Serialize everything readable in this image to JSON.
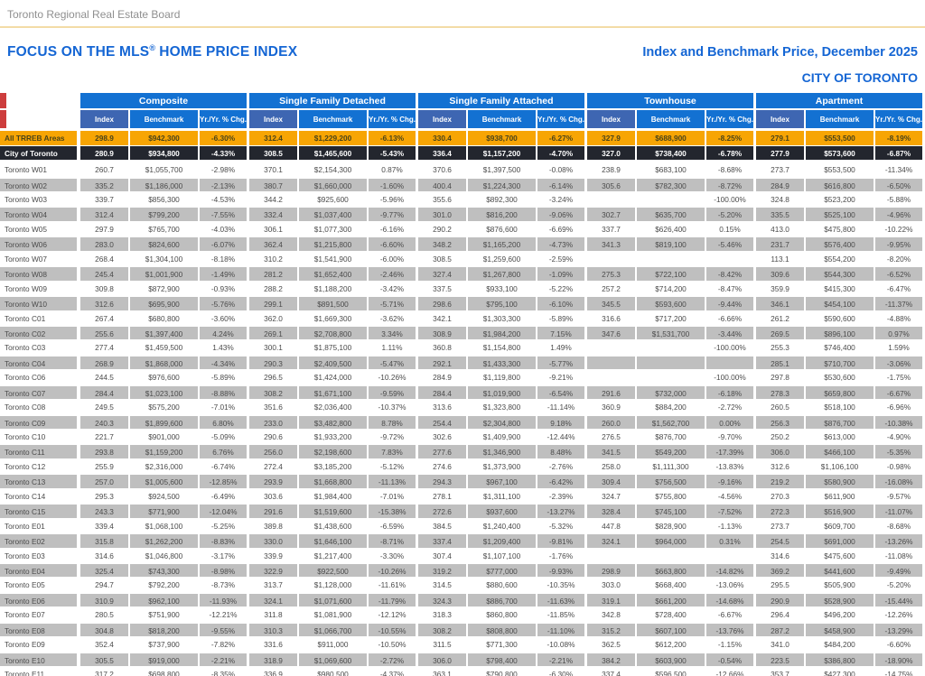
{
  "board": "Toronto Regional Real Estate Board",
  "titles": {
    "report_pre": "FOCUS ON THE MLS",
    "report_sup": "®",
    "report_post": "HOME PRICE INDEX",
    "date_title": "Index and Benchmark Price, December 2025",
    "region": "CITY OF TORONTO"
  },
  "colors": {
    "title_blue": "#1566d4",
    "group_header_blue": "#1371d2",
    "index_header_blue": "#3e66b2",
    "trreb_row_orange": "#f7a504",
    "city_row_dark": "#23262e",
    "stripe_gray": "#bfbfbf",
    "top_rule_gold": "#f3dca6",
    "corner_red": "#cd3d3d"
  },
  "table": {
    "groups": [
      "Composite",
      "Single Family Detached",
      "Single Family Attached",
      "Townhouse",
      "Apartment"
    ],
    "subheaders": [
      "Index",
      "Benchmark",
      "Yr./Yr. % Chg."
    ],
    "rows": [
      {
        "label": "All TRREB Areas",
        "type": "trreb",
        "cells": [
          "298.9",
          "$942,300",
          "-6.30%",
          "312.4",
          "$1,229,200",
          "-6.13%",
          "330.4",
          "$938,700",
          "-6.27%",
          "327.9",
          "$688,900",
          "-8.25%",
          "279.1",
          "$553,500",
          "-8.19%"
        ]
      },
      {
        "label": "City of Toronto",
        "type": "city",
        "cells": [
          "280.9",
          "$934,800",
          "-4.33%",
          "308.5",
          "$1,465,600",
          "-5.43%",
          "336.4",
          "$1,157,200",
          "-4.70%",
          "327.0",
          "$738,400",
          "-6.78%",
          "277.9",
          "$573,600",
          "-6.87%"
        ]
      },
      {
        "label": "Toronto W01",
        "cells": [
          "260.7",
          "$1,055,700",
          "-2.98%",
          "370.1",
          "$2,154,300",
          "0.87%",
          "370.6",
          "$1,397,500",
          "-0.08%",
          "238.9",
          "$683,100",
          "-8.68%",
          "273.7",
          "$553,500",
          "-11.34%"
        ]
      },
      {
        "label": "Toronto W02",
        "cells": [
          "335.2",
          "$1,186,000",
          "-2.13%",
          "380.7",
          "$1,660,000",
          "-1.60%",
          "400.4",
          "$1,224,300",
          "-6.14%",
          "305.6",
          "$782,300",
          "-8.72%",
          "284.9",
          "$616,800",
          "-6.50%"
        ]
      },
      {
        "label": "Toronto W03",
        "cells": [
          "339.7",
          "$856,300",
          "-4.53%",
          "344.2",
          "$925,600",
          "-5.96%",
          "355.6",
          "$892,300",
          "-3.24%",
          "",
          "",
          "-100.00%",
          "324.8",
          "$523,200",
          "-5.88%"
        ]
      },
      {
        "label": "Toronto W04",
        "cells": [
          "312.4",
          "$799,200",
          "-7.55%",
          "332.4",
          "$1,037,400",
          "-9.77%",
          "301.0",
          "$816,200",
          "-9.06%",
          "302.7",
          "$635,700",
          "-5.20%",
          "335.5",
          "$525,100",
          "-4.96%"
        ]
      },
      {
        "label": "Toronto W05",
        "cells": [
          "297.9",
          "$765,700",
          "-4.03%",
          "306.1",
          "$1,077,300",
          "-6.16%",
          "290.2",
          "$876,600",
          "-6.69%",
          "337.7",
          "$626,400",
          "0.15%",
          "413.0",
          "$475,800",
          "-10.22%"
        ]
      },
      {
        "label": "Toronto W06",
        "cells": [
          "283.0",
          "$824,600",
          "-6.07%",
          "362.4",
          "$1,215,800",
          "-6.60%",
          "348.2",
          "$1,165,200",
          "-4.73%",
          "341.3",
          "$819,100",
          "-5.46%",
          "231.7",
          "$576,400",
          "-9.95%"
        ]
      },
      {
        "label": "Toronto W07",
        "cells": [
          "268.4",
          "$1,304,100",
          "-8.18%",
          "310.2",
          "$1,541,900",
          "-6.00%",
          "308.5",
          "$1,259,600",
          "-2.59%",
          "",
          "",
          "",
          "113.1",
          "$554,200",
          "-8.20%"
        ]
      },
      {
        "label": "Toronto W08",
        "cells": [
          "245.4",
          "$1,001,900",
          "-1.49%",
          "281.2",
          "$1,652,400",
          "-2.46%",
          "327.4",
          "$1,267,800",
          "-1.09%",
          "275.3",
          "$722,100",
          "-8.42%",
          "309.6",
          "$544,300",
          "-6.52%"
        ]
      },
      {
        "label": "Toronto W09",
        "cells": [
          "309.8",
          "$872,900",
          "-0.93%",
          "288.2",
          "$1,188,200",
          "-3.42%",
          "337.5",
          "$933,100",
          "-5.22%",
          "257.2",
          "$714,200",
          "-8.47%",
          "359.9",
          "$415,300",
          "-6.47%"
        ]
      },
      {
        "label": "Toronto W10",
        "cells": [
          "312.6",
          "$695,900",
          "-5.76%",
          "299.1",
          "$891,500",
          "-5.71%",
          "298.6",
          "$795,100",
          "-6.10%",
          "345.5",
          "$593,600",
          "-9.44%",
          "346.1",
          "$454,100",
          "-11.37%"
        ]
      },
      {
        "label": "Toronto C01",
        "cells": [
          "267.4",
          "$680,800",
          "-3.60%",
          "362.0",
          "$1,669,300",
          "-3.62%",
          "342.1",
          "$1,303,300",
          "-5.89%",
          "316.6",
          "$717,200",
          "-6.66%",
          "261.2",
          "$590,600",
          "-4.88%"
        ]
      },
      {
        "label": "Toronto C02",
        "cells": [
          "255.6",
          "$1,397,400",
          "4.24%",
          "269.1",
          "$2,708,800",
          "3.34%",
          "308.9",
          "$1,984,200",
          "7.15%",
          "347.6",
          "$1,531,700",
          "-3.44%",
          "269.5",
          "$896,100",
          "0.97%"
        ]
      },
      {
        "label": "Toronto C03",
        "cells": [
          "277.4",
          "$1,459,500",
          "1.43%",
          "300.1",
          "$1,875,100",
          "1.11%",
          "360.8",
          "$1,154,800",
          "1.49%",
          "",
          "",
          "-100.00%",
          "255.3",
          "$746,400",
          "1.59%"
        ]
      },
      {
        "label": "Toronto C04",
        "cells": [
          "268.9",
          "$1,868,000",
          "-4.34%",
          "290.3",
          "$2,409,500",
          "-5.47%",
          "292.1",
          "$1,433,300",
          "-5.77%",
          "",
          "",
          "",
          "285.1",
          "$710,700",
          "-3.06%"
        ]
      },
      {
        "label": "Toronto C06",
        "cells": [
          "244.5",
          "$976,600",
          "-5.89%",
          "296.5",
          "$1,424,000",
          "-10.26%",
          "284.9",
          "$1,119,800",
          "-9.21%",
          "",
          "",
          "-100.00%",
          "297.8",
          "$530,600",
          "-1.75%"
        ]
      },
      {
        "label": "Toronto C07",
        "cells": [
          "284.4",
          "$1,023,100",
          "-8.88%",
          "308.2",
          "$1,671,100",
          "-9.59%",
          "284.4",
          "$1,019,900",
          "-6.54%",
          "291.6",
          "$732,000",
          "-6.18%",
          "278.3",
          "$659,800",
          "-6.67%"
        ]
      },
      {
        "label": "Toronto C08",
        "cells": [
          "249.5",
          "$575,200",
          "-7.01%",
          "351.6",
          "$2,036,400",
          "-10.37%",
          "313.6",
          "$1,323,800",
          "-11.14%",
          "360.9",
          "$884,200",
          "-2.72%",
          "260.5",
          "$518,100",
          "-6.96%"
        ]
      },
      {
        "label": "Toronto C09",
        "cells": [
          "240.3",
          "$1,899,600",
          "6.80%",
          "233.0",
          "$3,482,800",
          "8.78%",
          "254.4",
          "$2,304,800",
          "9.18%",
          "260.0",
          "$1,562,700",
          "0.00%",
          "256.3",
          "$876,700",
          "-10.38%"
        ]
      },
      {
        "label": "Toronto C10",
        "cells": [
          "221.7",
          "$901,000",
          "-5.09%",
          "290.6",
          "$1,933,200",
          "-9.72%",
          "302.6",
          "$1,409,900",
          "-12.44%",
          "276.5",
          "$876,700",
          "-9.70%",
          "250.2",
          "$613,000",
          "-4.90%"
        ]
      },
      {
        "label": "Toronto C11",
        "cells": [
          "293.8",
          "$1,159,200",
          "6.76%",
          "256.0",
          "$2,198,600",
          "7.83%",
          "277.6",
          "$1,346,900",
          "8.48%",
          "341.5",
          "$549,200",
          "-17.39%",
          "306.0",
          "$466,100",
          "-5.35%"
        ]
      },
      {
        "label": "Toronto C12",
        "cells": [
          "255.9",
          "$2,316,000",
          "-6.74%",
          "272.4",
          "$3,185,200",
          "-5.12%",
          "274.6",
          "$1,373,900",
          "-2.76%",
          "258.0",
          "$1,111,300",
          "-13.83%",
          "312.6",
          "$1,106,100",
          "-0.98%"
        ]
      },
      {
        "label": "Toronto C13",
        "cells": [
          "257.0",
          "$1,005,600",
          "-12.85%",
          "293.9",
          "$1,668,800",
          "-11.13%",
          "294.3",
          "$967,100",
          "-6.42%",
          "309.4",
          "$756,500",
          "-9.16%",
          "219.2",
          "$580,900",
          "-16.08%"
        ]
      },
      {
        "label": "Toronto C14",
        "cells": [
          "295.3",
          "$924,500",
          "-6.49%",
          "303.6",
          "$1,984,400",
          "-7.01%",
          "278.1",
          "$1,311,100",
          "-2.39%",
          "324.7",
          "$755,800",
          "-4.56%",
          "270.3",
          "$611,900",
          "-9.57%"
        ]
      },
      {
        "label": "Toronto C15",
        "cells": [
          "243.3",
          "$771,900",
          "-12.04%",
          "291.6",
          "$1,519,600",
          "-15.38%",
          "272.6",
          "$937,600",
          "-13.27%",
          "328.4",
          "$745,100",
          "-7.52%",
          "272.3",
          "$516,900",
          "-11.07%"
        ]
      },
      {
        "label": "Toronto E01",
        "cells": [
          "339.4",
          "$1,068,100",
          "-5.25%",
          "389.8",
          "$1,438,600",
          "-6.59%",
          "384.5",
          "$1,240,400",
          "-5.32%",
          "447.8",
          "$828,900",
          "-1.13%",
          "273.7",
          "$609,700",
          "-8.68%"
        ]
      },
      {
        "label": "Toronto E02",
        "cells": [
          "315.8",
          "$1,262,200",
          "-8.83%",
          "330.0",
          "$1,646,100",
          "-8.71%",
          "337.4",
          "$1,209,400",
          "-9.81%",
          "324.1",
          "$964,000",
          "0.31%",
          "254.5",
          "$691,000",
          "-13.26%"
        ]
      },
      {
        "label": "Toronto E03",
        "cells": [
          "314.6",
          "$1,046,800",
          "-3.17%",
          "339.9",
          "$1,217,400",
          "-3.30%",
          "307.4",
          "$1,107,100",
          "-1.76%",
          "",
          "",
          "",
          "314.6",
          "$475,600",
          "-11.08%"
        ]
      },
      {
        "label": "Toronto E04",
        "cells": [
          "325.4",
          "$743,300",
          "-8.98%",
          "322.9",
          "$922,500",
          "-10.26%",
          "319.2",
          "$777,000",
          "-9.93%",
          "298.9",
          "$663,800",
          "-14.82%",
          "369.2",
          "$441,600",
          "-9.49%"
        ]
      },
      {
        "label": "Toronto E05",
        "cells": [
          "294.7",
          "$792,200",
          "-8.73%",
          "313.7",
          "$1,128,000",
          "-11.61%",
          "314.5",
          "$880,600",
          "-10.35%",
          "303.0",
          "$668,400",
          "-13.06%",
          "295.5",
          "$505,900",
          "-5.20%"
        ]
      },
      {
        "label": "Toronto E06",
        "cells": [
          "310.9",
          "$962,100",
          "-11.93%",
          "324.1",
          "$1,071,600",
          "-11.79%",
          "324.3",
          "$886,700",
          "-11.63%",
          "319.1",
          "$661,200",
          "-14.68%",
          "290.9",
          "$528,900",
          "-15.44%"
        ]
      },
      {
        "label": "Toronto E07",
        "cells": [
          "280.5",
          "$751,900",
          "-12.21%",
          "311.8",
          "$1,081,900",
          "-12.12%",
          "318.3",
          "$860,800",
          "-11.85%",
          "342.8",
          "$728,400",
          "-6.67%",
          "296.4",
          "$496,200",
          "-12.26%"
        ]
      },
      {
        "label": "Toronto E08",
        "cells": [
          "304.8",
          "$818,200",
          "-9.55%",
          "310.3",
          "$1,066,700",
          "-10.55%",
          "308.2",
          "$808,800",
          "-11.10%",
          "315.2",
          "$607,100",
          "-13.76%",
          "287.2",
          "$458,900",
          "-13.29%"
        ]
      },
      {
        "label": "Toronto E09",
        "cells": [
          "352.4",
          "$737,900",
          "-7.82%",
          "331.6",
          "$911,000",
          "-10.50%",
          "311.5",
          "$771,300",
          "-10.08%",
          "362.5",
          "$612,200",
          "-1.15%",
          "341.0",
          "$484,200",
          "-6.60%"
        ]
      },
      {
        "label": "Toronto E10",
        "cells": [
          "305.5",
          "$919,000",
          "-2.21%",
          "318.9",
          "$1,069,600",
          "-2.72%",
          "306.0",
          "$798,400",
          "-2.21%",
          "384.2",
          "$603,900",
          "-0.54%",
          "223.5",
          "$386,800",
          "-18.90%"
        ]
      },
      {
        "label": "Toronto E11",
        "cells": [
          "317.2",
          "$698,800",
          "-8.35%",
          "336.9",
          "$980,500",
          "-4.37%",
          "363.1",
          "$790,800",
          "-6.30%",
          "337.4",
          "$596,500",
          "-12.66%",
          "353.7",
          "$427,300",
          "-14.75%"
        ]
      }
    ]
  }
}
